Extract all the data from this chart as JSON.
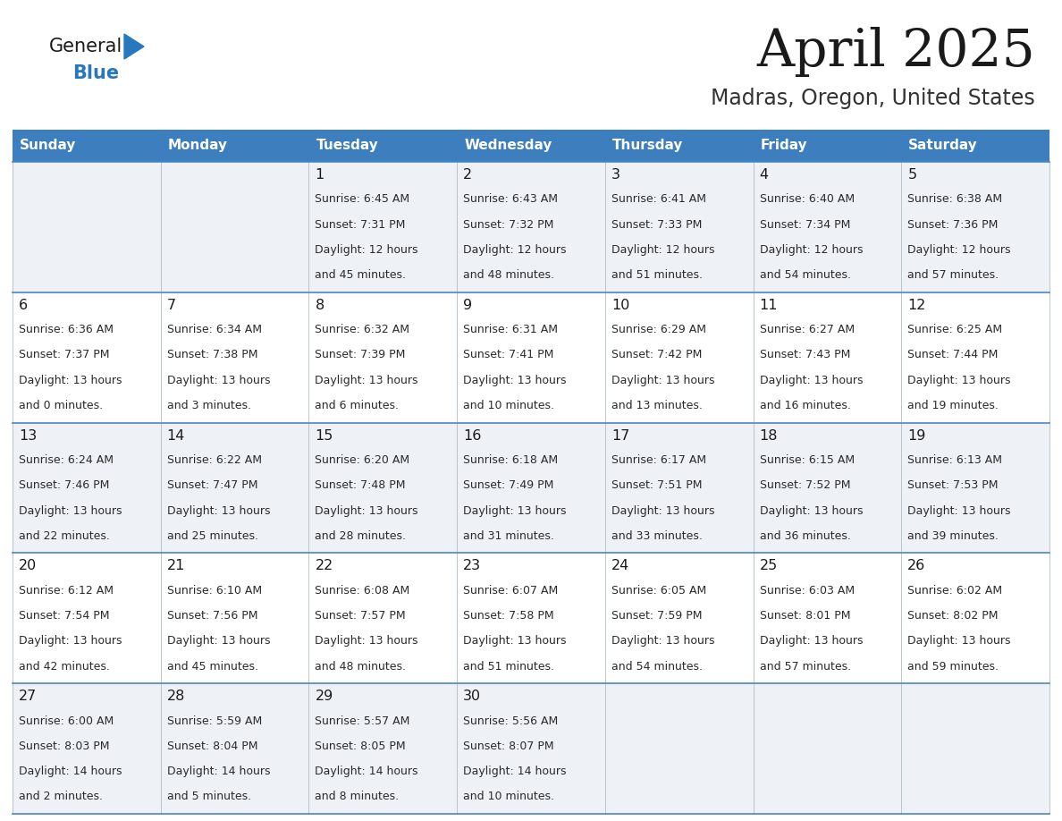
{
  "title": "April 2025",
  "subtitle": "Madras, Oregon, United States",
  "header_bg": "#3d7ebf",
  "header_text_color": "#ffffff",
  "day_names": [
    "Sunday",
    "Monday",
    "Tuesday",
    "Wednesday",
    "Thursday",
    "Friday",
    "Saturday"
  ],
  "row_bg_light": "#eef2f7",
  "row_bg_white": "#ffffff",
  "cell_border_color": "#4a86c8",
  "title_color": "#1a1a1a",
  "subtitle_color": "#333333",
  "day_num_color": "#1a1a1a",
  "cell_text_color": "#2a2a2a",
  "logo_general_color": "#1a1a1a",
  "logo_blue_color": "#2878be",
  "logo_triangle_color": "#2878be",
  "figwidth": 11.88,
  "figheight": 9.18,
  "calendar": [
    [
      {
        "day": "",
        "sunrise": "",
        "sunset": "",
        "daylight1": "",
        "daylight2": ""
      },
      {
        "day": "",
        "sunrise": "",
        "sunset": "",
        "daylight1": "",
        "daylight2": ""
      },
      {
        "day": "1",
        "sunrise": "Sunrise: 6:45 AM",
        "sunset": "Sunset: 7:31 PM",
        "daylight1": "Daylight: 12 hours",
        "daylight2": "and 45 minutes."
      },
      {
        "day": "2",
        "sunrise": "Sunrise: 6:43 AM",
        "sunset": "Sunset: 7:32 PM",
        "daylight1": "Daylight: 12 hours",
        "daylight2": "and 48 minutes."
      },
      {
        "day": "3",
        "sunrise": "Sunrise: 6:41 AM",
        "sunset": "Sunset: 7:33 PM",
        "daylight1": "Daylight: 12 hours",
        "daylight2": "and 51 minutes."
      },
      {
        "day": "4",
        "sunrise": "Sunrise: 6:40 AM",
        "sunset": "Sunset: 7:34 PM",
        "daylight1": "Daylight: 12 hours",
        "daylight2": "and 54 minutes."
      },
      {
        "day": "5",
        "sunrise": "Sunrise: 6:38 AM",
        "sunset": "Sunset: 7:36 PM",
        "daylight1": "Daylight: 12 hours",
        "daylight2": "and 57 minutes."
      }
    ],
    [
      {
        "day": "6",
        "sunrise": "Sunrise: 6:36 AM",
        "sunset": "Sunset: 7:37 PM",
        "daylight1": "Daylight: 13 hours",
        "daylight2": "and 0 minutes."
      },
      {
        "day": "7",
        "sunrise": "Sunrise: 6:34 AM",
        "sunset": "Sunset: 7:38 PM",
        "daylight1": "Daylight: 13 hours",
        "daylight2": "and 3 minutes."
      },
      {
        "day": "8",
        "sunrise": "Sunrise: 6:32 AM",
        "sunset": "Sunset: 7:39 PM",
        "daylight1": "Daylight: 13 hours",
        "daylight2": "and 6 minutes."
      },
      {
        "day": "9",
        "sunrise": "Sunrise: 6:31 AM",
        "sunset": "Sunset: 7:41 PM",
        "daylight1": "Daylight: 13 hours",
        "daylight2": "and 10 minutes."
      },
      {
        "day": "10",
        "sunrise": "Sunrise: 6:29 AM",
        "sunset": "Sunset: 7:42 PM",
        "daylight1": "Daylight: 13 hours",
        "daylight2": "and 13 minutes."
      },
      {
        "day": "11",
        "sunrise": "Sunrise: 6:27 AM",
        "sunset": "Sunset: 7:43 PM",
        "daylight1": "Daylight: 13 hours",
        "daylight2": "and 16 minutes."
      },
      {
        "day": "12",
        "sunrise": "Sunrise: 6:25 AM",
        "sunset": "Sunset: 7:44 PM",
        "daylight1": "Daylight: 13 hours",
        "daylight2": "and 19 minutes."
      }
    ],
    [
      {
        "day": "13",
        "sunrise": "Sunrise: 6:24 AM",
        "sunset": "Sunset: 7:46 PM",
        "daylight1": "Daylight: 13 hours",
        "daylight2": "and 22 minutes."
      },
      {
        "day": "14",
        "sunrise": "Sunrise: 6:22 AM",
        "sunset": "Sunset: 7:47 PM",
        "daylight1": "Daylight: 13 hours",
        "daylight2": "and 25 minutes."
      },
      {
        "day": "15",
        "sunrise": "Sunrise: 6:20 AM",
        "sunset": "Sunset: 7:48 PM",
        "daylight1": "Daylight: 13 hours",
        "daylight2": "and 28 minutes."
      },
      {
        "day": "16",
        "sunrise": "Sunrise: 6:18 AM",
        "sunset": "Sunset: 7:49 PM",
        "daylight1": "Daylight: 13 hours",
        "daylight2": "and 31 minutes."
      },
      {
        "day": "17",
        "sunrise": "Sunrise: 6:17 AM",
        "sunset": "Sunset: 7:51 PM",
        "daylight1": "Daylight: 13 hours",
        "daylight2": "and 33 minutes."
      },
      {
        "day": "18",
        "sunrise": "Sunrise: 6:15 AM",
        "sunset": "Sunset: 7:52 PM",
        "daylight1": "Daylight: 13 hours",
        "daylight2": "and 36 minutes."
      },
      {
        "day": "19",
        "sunrise": "Sunrise: 6:13 AM",
        "sunset": "Sunset: 7:53 PM",
        "daylight1": "Daylight: 13 hours",
        "daylight2": "and 39 minutes."
      }
    ],
    [
      {
        "day": "20",
        "sunrise": "Sunrise: 6:12 AM",
        "sunset": "Sunset: 7:54 PM",
        "daylight1": "Daylight: 13 hours",
        "daylight2": "and 42 minutes."
      },
      {
        "day": "21",
        "sunrise": "Sunrise: 6:10 AM",
        "sunset": "Sunset: 7:56 PM",
        "daylight1": "Daylight: 13 hours",
        "daylight2": "and 45 minutes."
      },
      {
        "day": "22",
        "sunrise": "Sunrise: 6:08 AM",
        "sunset": "Sunset: 7:57 PM",
        "daylight1": "Daylight: 13 hours",
        "daylight2": "and 48 minutes."
      },
      {
        "day": "23",
        "sunrise": "Sunrise: 6:07 AM",
        "sunset": "Sunset: 7:58 PM",
        "daylight1": "Daylight: 13 hours",
        "daylight2": "and 51 minutes."
      },
      {
        "day": "24",
        "sunrise": "Sunrise: 6:05 AM",
        "sunset": "Sunset: 7:59 PM",
        "daylight1": "Daylight: 13 hours",
        "daylight2": "and 54 minutes."
      },
      {
        "day": "25",
        "sunrise": "Sunrise: 6:03 AM",
        "sunset": "Sunset: 8:01 PM",
        "daylight1": "Daylight: 13 hours",
        "daylight2": "and 57 minutes."
      },
      {
        "day": "26",
        "sunrise": "Sunrise: 6:02 AM",
        "sunset": "Sunset: 8:02 PM",
        "daylight1": "Daylight: 13 hours",
        "daylight2": "and 59 minutes."
      }
    ],
    [
      {
        "day": "27",
        "sunrise": "Sunrise: 6:00 AM",
        "sunset": "Sunset: 8:03 PM",
        "daylight1": "Daylight: 14 hours",
        "daylight2": "and 2 minutes."
      },
      {
        "day": "28",
        "sunrise": "Sunrise: 5:59 AM",
        "sunset": "Sunset: 8:04 PM",
        "daylight1": "Daylight: 14 hours",
        "daylight2": "and 5 minutes."
      },
      {
        "day": "29",
        "sunrise": "Sunrise: 5:57 AM",
        "sunset": "Sunset: 8:05 PM",
        "daylight1": "Daylight: 14 hours",
        "daylight2": "and 8 minutes."
      },
      {
        "day": "30",
        "sunrise": "Sunrise: 5:56 AM",
        "sunset": "Sunset: 8:07 PM",
        "daylight1": "Daylight: 14 hours",
        "daylight2": "and 10 minutes."
      },
      {
        "day": "",
        "sunrise": "",
        "sunset": "",
        "daylight1": "",
        "daylight2": ""
      },
      {
        "day": "",
        "sunrise": "",
        "sunset": "",
        "daylight1": "",
        "daylight2": ""
      },
      {
        "day": "",
        "sunrise": "",
        "sunset": "",
        "daylight1": "",
        "daylight2": ""
      }
    ]
  ]
}
